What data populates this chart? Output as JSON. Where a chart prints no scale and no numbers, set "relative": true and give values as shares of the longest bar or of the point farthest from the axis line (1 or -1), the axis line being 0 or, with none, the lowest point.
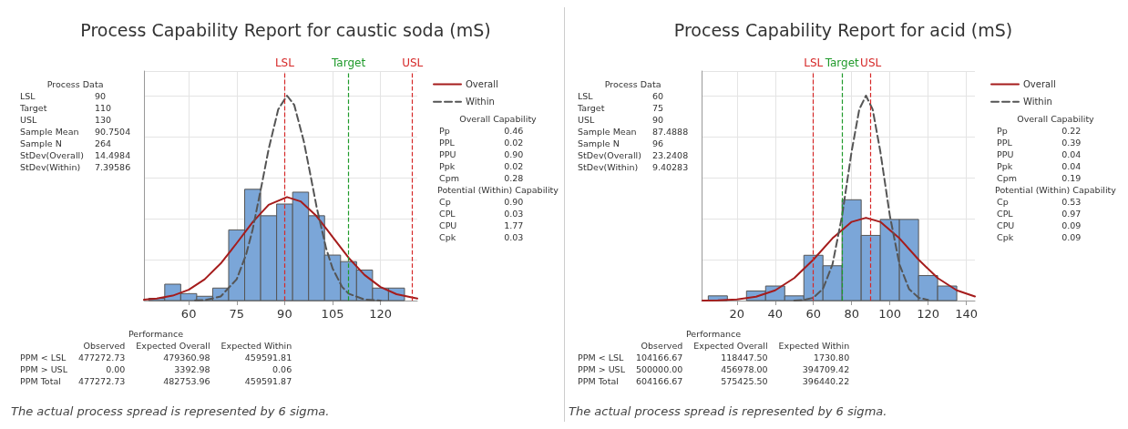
{
  "chart_data": [
    {
      "type": "histogram",
      "title": "Process Capability Report for caustic soda (mS)",
      "relative": true,
      "color": "#7ba6d8",
      "grid": true,
      "legend": "top right",
      "xlim": [
        46,
        131.5
      ],
      "xticks": [
        60,
        75,
        90,
        105,
        120
      ],
      "bins": [
        47.5,
        52.5,
        57.5,
        62.5,
        67.5,
        72.5,
        77.5,
        82.5,
        87.5,
        92.5,
        97.5,
        102.5,
        107.5,
        112.5,
        117.5,
        122.5,
        127.5
      ],
      "values": [
        0.011,
        0.08,
        0.034,
        0.021,
        0.061,
        0.345,
        0.543,
        0.414,
        0.471,
        0.529,
        0.414,
        0.222,
        0.19,
        0.149,
        0.061,
        0.061
      ],
      "series": [
        {
          "name": "Overall",
          "type": "line",
          "color": "#a51c1c",
          "line_style": "solid",
          "marker": "none",
          "x": [
            46,
            50,
            55,
            60,
            65,
            70,
            75,
            80,
            85,
            90.75,
            95,
            100,
            105,
            110,
            115,
            120,
            125,
            131.5
          ],
          "values": [
            0.004,
            0.01,
            0.024,
            0.053,
            0.104,
            0.181,
            0.28,
            0.383,
            0.467,
            0.505,
            0.484,
            0.412,
            0.311,
            0.209,
            0.125,
            0.066,
            0.031,
            0.01
          ]
        },
        {
          "name": "Within",
          "type": "line",
          "color": "#555555",
          "line_style": "dashed",
          "marker": "none",
          "x": [
            62,
            65,
            70,
            75,
            78,
            80,
            83,
            85,
            88,
            90.75,
            93,
            96,
            98,
            100,
            103,
            105,
            108,
            110,
            115,
            120
          ],
          "values": [
            0.001,
            0.002,
            0.02,
            0.104,
            0.227,
            0.347,
            0.578,
            0.739,
            0.933,
            1,
            0.955,
            0.777,
            0.619,
            0.457,
            0.254,
            0.157,
            0.066,
            0.034,
            0.005,
            0.0004
          ]
        }
      ],
      "ref_lines": [
        {
          "axis": "x",
          "value": 90,
          "label": "LSL",
          "color": "#d62828",
          "line_style": "dashed"
        },
        {
          "axis": "x",
          "value": 110,
          "label": "Target",
          "color": "#1f9a2a",
          "line_style": "dashed"
        },
        {
          "axis": "x",
          "value": 130,
          "label": "USL",
          "color": "#d62828",
          "line_style": "dashed"
        }
      ],
      "annotations": [
        "Process Data\nLSL\t90\nTarget\t110\nUSL\t130\nSample Mean\t90.7504\nSample N\t264\nStDev(Overall)\t14.4984\nStDev(Within)\t7.39586",
        "Overall Capability\nPp\t0.46\nPPL\t0.02\nPPU\t0.90\nPpk\t0.02\nCpm\t0.28\nPotential (Within) Capability\nCp\t0.90\nCPL\t0.03\nCPU\t1.77\nCpk\t0.03",
        "Performance\n\tObserved\tExpected Overall\tExpected Within\nPPM < LSL\t477272.73\t479360.98\t459591.81\nPPM > USL\t0.00\t3392.98\t0.06\nPPM Total\t477272.73\t482753.96\t459591.87",
        "The actual process spread is represented by 6 sigma."
      ]
    },
    {
      "type": "histogram",
      "title": "Process Capability Report for acid (mS)",
      "relative": true,
      "color": "#7ba6d8",
      "grid": true,
      "legend": "top right",
      "xlim": [
        1.5,
        144.5
      ],
      "xticks": [
        20,
        40,
        60,
        80,
        100,
        120,
        140
      ],
      "bins": [
        5,
        15,
        25,
        35,
        45,
        55,
        65,
        75,
        85,
        95,
        105,
        115,
        125,
        135
      ],
      "values": [
        0.023,
        0,
        0.047,
        0.071,
        0.023,
        0.221,
        0.17,
        0.492,
        0.318,
        0.396,
        0.396,
        0.122,
        0.071
      ],
      "series": [
        {
          "name": "Overall",
          "type": "line",
          "color": "#a51c1c",
          "line_style": "solid",
          "marker": "none",
          "x": [
            2,
            10,
            20,
            30,
            40,
            50,
            60,
            70,
            80,
            87.5,
            95,
            105,
            115,
            125,
            135,
            144.5
          ],
          "values": [
            0.0005,
            0.0016,
            0.006,
            0.019,
            0.05,
            0.11,
            0.2,
            0.304,
            0.384,
            0.404,
            0.384,
            0.304,
            0.2,
            0.11,
            0.05,
            0.02
          ]
        },
        {
          "name": "Within",
          "type": "line",
          "color": "#555555",
          "line_style": "dashed",
          "marker": "none",
          "x": [
            50,
            55,
            60,
            65,
            70,
            75,
            80,
            84,
            87.5,
            91,
            95,
            100,
            105,
            110,
            115,
            120
          ],
          "values": [
            0.0004,
            0.003,
            0.014,
            0.057,
            0.177,
            0.414,
            0.728,
            0.933,
            1,
            0.933,
            0.728,
            0.414,
            0.177,
            0.057,
            0.014,
            0.003
          ]
        }
      ],
      "ref_lines": [
        {
          "axis": "x",
          "value": 60,
          "label": "LSL",
          "color": "#d62828",
          "line_style": "dashed"
        },
        {
          "axis": "x",
          "value": 75,
          "label": "Target",
          "color": "#1f9a2a",
          "line_style": "dashed"
        },
        {
          "axis": "x",
          "value": 90,
          "label": "USL",
          "color": "#d62828",
          "line_style": "dashed"
        }
      ],
      "annotations": [
        "Process Data\nLSL\t60\nTarget\t75\nUSL\t90\nSample Mean\t87.4888\nSample N\t96\nStDev(Overall)\t23.2408\nStDev(Within)\t9.40283",
        "Overall Capability\nPp\t0.22\nPPL\t0.39\nPPU\t0.04\nPpk\t0.04\nCpm\t0.19\nPotential (Within) Capability\nCp\t0.53\nCPL\t0.97\nCPU\t0.09\nCpk\t0.09",
        "Performance\n\tObserved\tExpected Overall\tExpected Within\nPPM < LSL\t104166.67\t118447.50\t1730.80\nPPM > USL\t500000.00\t456978.00\t394709.42\nPPM Total\t604166.67\t575425.50\t396440.22",
        "The actual process spread is represented by 6 sigma."
      ]
    }
  ]
}
